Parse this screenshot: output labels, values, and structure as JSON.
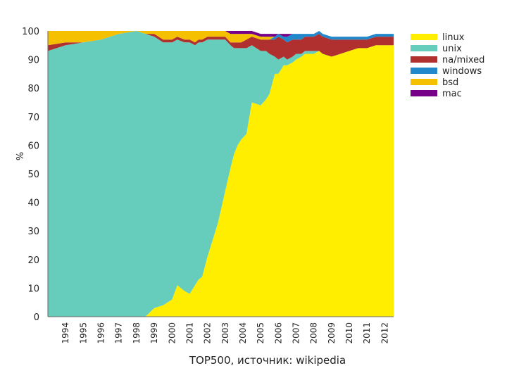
{
  "caption": "TOP500, источник: wikipedia",
  "colors": {
    "linux": "#ffee00",
    "unix": "#66ccbb",
    "na_mixed": "#b03030",
    "windows": "#2288cc",
    "bsd": "#f5c000",
    "mac": "#770088"
  },
  "chart_data": {
    "type": "area",
    "stacked": true,
    "xlabel": "",
    "ylabel": "%",
    "ylim": [
      0,
      100
    ],
    "yticks": [
      0,
      10,
      20,
      30,
      40,
      50,
      60,
      70,
      80,
      90,
      100
    ],
    "xlim": [
      1993.0,
      2012.5
    ],
    "xtick_labels": [
      "1994",
      "1995",
      "1996",
      "1997",
      "1998",
      "1999",
      "2000",
      "2001",
      "2002",
      "2003",
      "2004",
      "2005",
      "2006",
      "2007",
      "2008",
      "2009",
      "2010",
      "2011",
      "2012"
    ],
    "grid": false,
    "legend_position": "right",
    "x": [
      1993.0,
      1994.0,
      1995.0,
      1996.0,
      1997.0,
      1998.0,
      1998.5,
      1999.0,
      1999.5,
      2000.0,
      2000.3,
      2000.7,
      2001.0,
      2001.3,
      2001.5,
      2001.7,
      2002.0,
      2002.3,
      2002.6,
      2003.0,
      2003.3,
      2003.5,
      2003.7,
      2003.9,
      2004.2,
      2004.5,
      2005.0,
      2005.3,
      2005.5,
      2005.8,
      2006.0,
      2006.3,
      2006.5,
      2006.8,
      2007.0,
      2007.3,
      2007.5,
      2007.8,
      2008.0,
      2008.3,
      2008.5,
      2009.0,
      2009.5,
      2010.0,
      2010.5,
      2011.0,
      2011.5,
      2012.0,
      2012.5
    ],
    "series": [
      {
        "name": "linux",
        "values": [
          0,
          0,
          0,
          0,
          0,
          0,
          0,
          3,
          4,
          6,
          11,
          9,
          8,
          11,
          13,
          14,
          21,
          27,
          33,
          44,
          52,
          57,
          60,
          62,
          64,
          75,
          74,
          76,
          78,
          85,
          85,
          88,
          88,
          89,
          90,
          91,
          92,
          92,
          92,
          93,
          92,
          91,
          92,
          93,
          94,
          94,
          95,
          95,
          95
        ]
      },
      {
        "name": "unix",
        "values": [
          93,
          95,
          96,
          97,
          99,
          100,
          99,
          95,
          92,
          90,
          86,
          87,
          88,
          84,
          83,
          82,
          76,
          70,
          64,
          53,
          43,
          37,
          34,
          32,
          30,
          20,
          19,
          17,
          14,
          6,
          5,
          3,
          2,
          2,
          2,
          1,
          1,
          1,
          1,
          0,
          0,
          0,
          0,
          0,
          0,
          0,
          0,
          0,
          0
        ]
      },
      {
        "name": "na/mixed",
        "values": [
          2,
          1,
          0,
          0,
          0,
          0,
          0,
          1,
          1,
          1,
          1,
          1,
          1,
          1,
          1,
          1,
          1,
          1,
          1,
          1,
          1,
          2,
          2,
          2,
          3,
          3,
          4,
          4,
          5,
          6,
          8,
          6,
          6,
          6,
          5,
          5,
          5,
          5,
          5,
          6,
          6,
          6,
          5,
          4,
          3,
          3,
          3,
          3,
          3
        ]
      },
      {
        "name": "windows",
        "values": [
          0,
          0,
          0,
          0,
          0,
          0,
          0,
          0,
          0,
          0,
          0,
          0,
          0,
          0,
          0,
          0,
          0,
          0,
          0,
          0,
          0,
          0,
          0,
          0,
          0,
          0,
          0,
          0,
          0,
          1,
          1,
          1,
          2,
          2,
          2,
          2,
          1,
          1,
          1,
          1,
          1,
          1,
          1,
          1,
          1,
          1,
          1,
          1,
          1
        ]
      },
      {
        "name": "bsd",
        "values": [
          5,
          4,
          4,
          3,
          1,
          0,
          1,
          1,
          3,
          3,
          2,
          3,
          3,
          4,
          3,
          3,
          2,
          2,
          2,
          2,
          3,
          3,
          3,
          3,
          2,
          1,
          1,
          1,
          1,
          0,
          0,
          0,
          0,
          0,
          0,
          0,
          0,
          0,
          0,
          0,
          0,
          0,
          0,
          0,
          0,
          0,
          0,
          0,
          0
        ]
      },
      {
        "name": "mac",
        "values": [
          0,
          0,
          0,
          0,
          0,
          0,
          0,
          0,
          0,
          0,
          0,
          0,
          0,
          0,
          0,
          0,
          0,
          0,
          0,
          0,
          1,
          1,
          1,
          1,
          1,
          1,
          1,
          1,
          1,
          1,
          0,
          1,
          1,
          0,
          0,
          0,
          0,
          0,
          0,
          0,
          0,
          0,
          0,
          0,
          0,
          0,
          0,
          0,
          0
        ]
      }
    ]
  }
}
